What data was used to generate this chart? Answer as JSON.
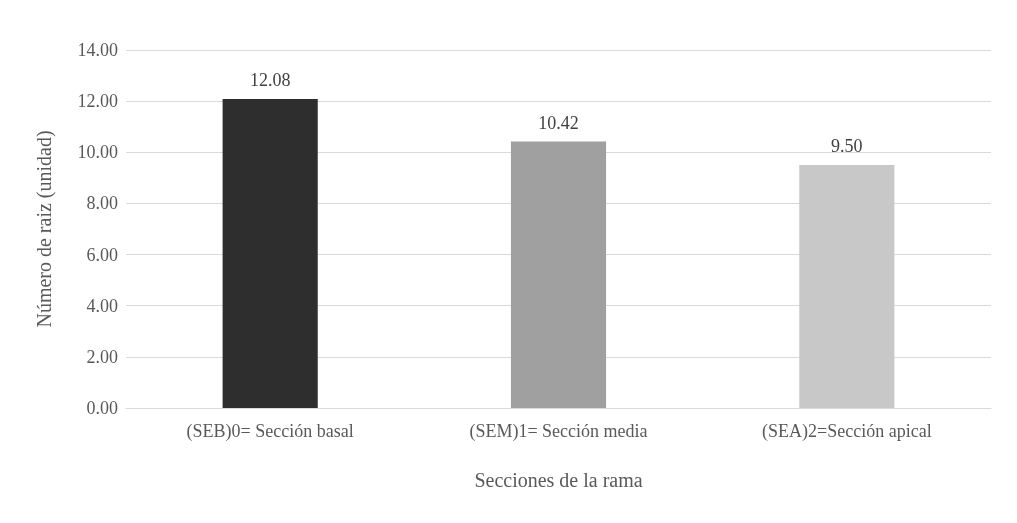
{
  "chart_data": {
    "type": "bar",
    "xlabel": "Secciones de la rama",
    "ylabel": "Número de raiz (unidad)",
    "categories": [
      "(SEB)0= Sección basal",
      "(SEM)1= Sección media",
      "(SEA)2=Sección apical"
    ],
    "values": [
      12.08,
      10.42,
      9.5
    ],
    "value_labels": [
      "12.08",
      "10.42",
      "9.50"
    ],
    "colors": [
      "#2e2e2e",
      "#a0a0a0",
      "#c8c8c8"
    ],
    "ylim": [
      0,
      14
    ],
    "yticks": [
      {
        "value": 0,
        "label": "0.00"
      },
      {
        "value": 2,
        "label": "2.00"
      },
      {
        "value": 4,
        "label": "4.00"
      },
      {
        "value": 6,
        "label": "6.00"
      },
      {
        "value": 8,
        "label": "8.00"
      },
      {
        "value": 10,
        "label": "10.00"
      },
      {
        "value": 12,
        "label": "12.00"
      },
      {
        "value": 14,
        "label": "14.00"
      }
    ],
    "grid": "y"
  }
}
